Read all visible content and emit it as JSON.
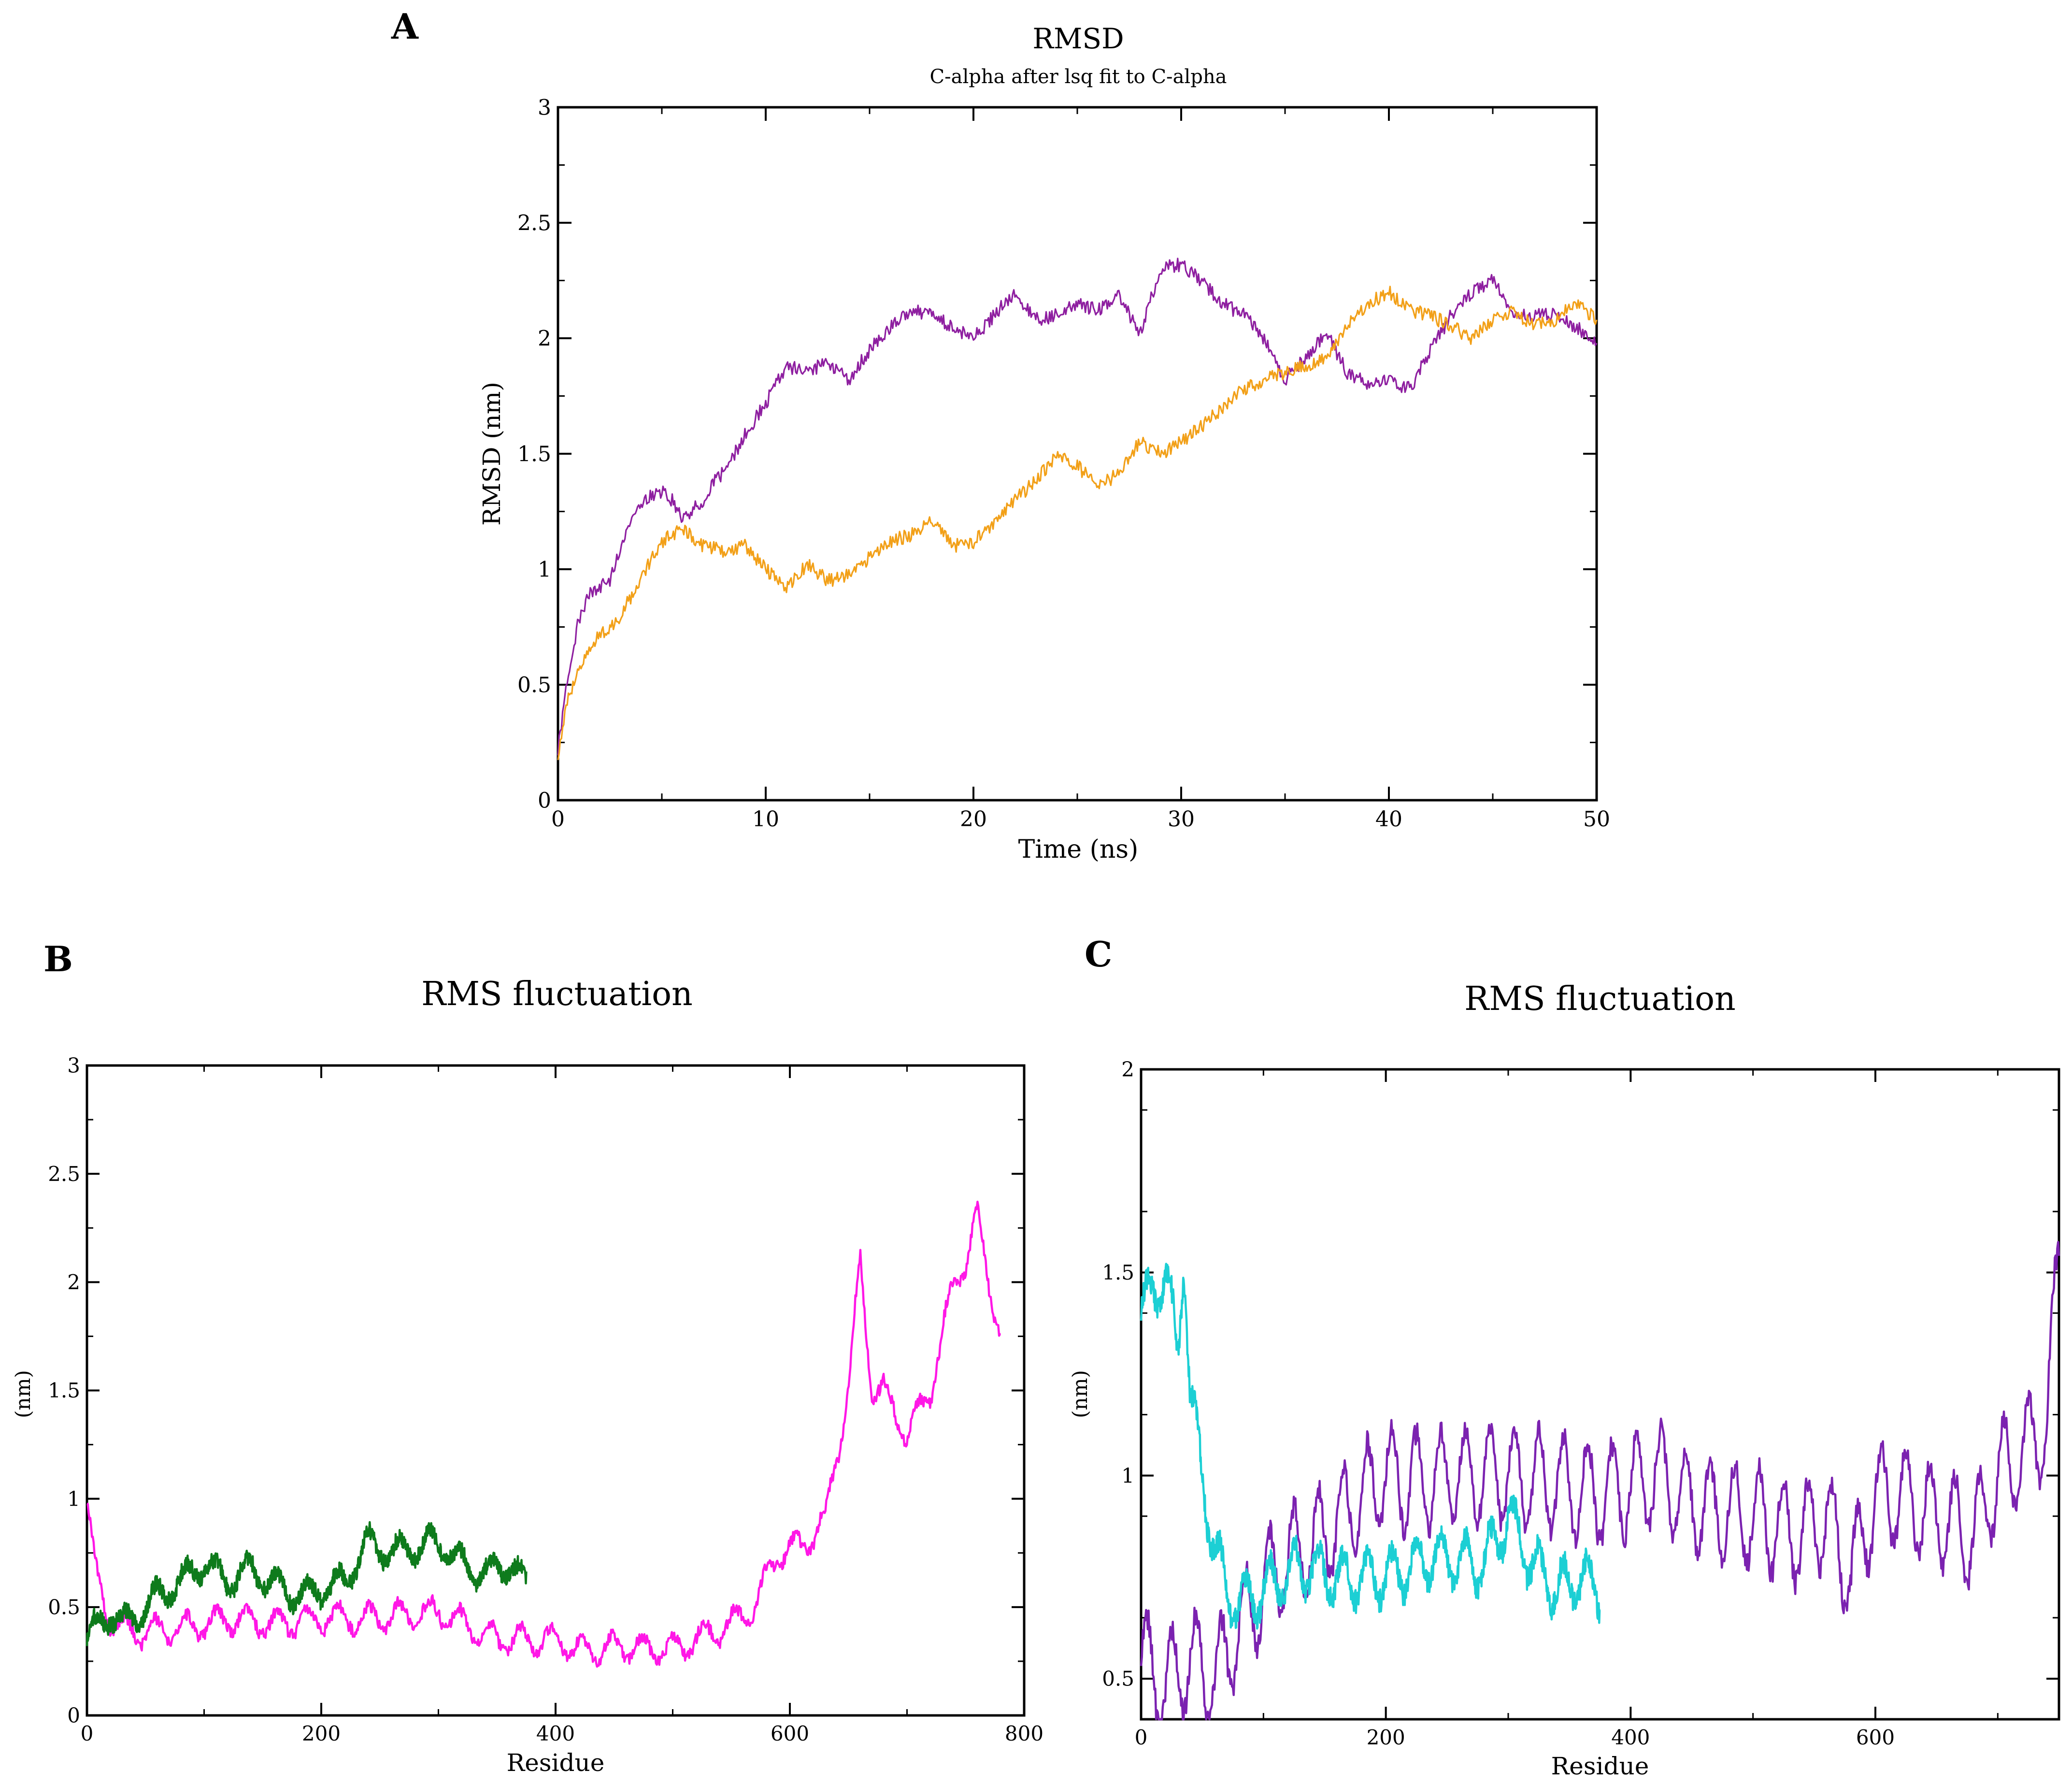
{
  "colors": {
    "purple": "#8e1fa0",
    "orange": "#f2a018",
    "magenta": "#ff17e6",
    "green": "#0e7b1c",
    "violet": "#7b22b0",
    "cyan": "#1ccfd4"
  },
  "chart_data": [
    {
      "type": "line",
      "panel_label": "A",
      "title": "RMSD",
      "subtitle": "C-alpha after lsq fit to C-alpha",
      "xlabel": "Time (ns)",
      "ylabel": "RMSD (nm)",
      "xlim": [
        0,
        50
      ],
      "ylim": [
        0,
        3
      ],
      "x_ticks": [
        0,
        10,
        20,
        30,
        40,
        50
      ],
      "y_ticks": [
        0,
        0.5,
        1,
        1.5,
        2,
        2.5,
        3
      ],
      "x_tick_labels": [
        "0",
        "10",
        "20",
        "30",
        "40",
        "50"
      ],
      "y_tick_labels": [
        "0",
        "0.5",
        "1",
        "1.5",
        "2",
        "2.5",
        "3"
      ],
      "x_minor": 5,
      "y_minor": 0.25,
      "series": [
        {
          "name": "RMSD purple",
          "color": "#8e1fa0",
          "x": [
            0,
            0.5,
            1,
            1.5,
            2,
            2.5,
            3,
            3.5,
            4,
            4.5,
            5,
            5.5,
            6,
            6.5,
            7,
            7.5,
            8,
            8.5,
            9,
            9.5,
            10,
            11,
            12,
            13,
            14,
            15,
            16,
            17,
            18,
            19,
            20,
            21,
            22,
            23,
            24,
            25,
            26,
            27,
            28,
            29,
            30,
            31,
            32,
            33,
            34,
            35,
            36,
            37,
            38,
            39,
            40,
            41,
            42,
            43,
            44,
            45,
            46,
            47,
            48,
            49,
            50
          ],
          "y": [
            0.22,
            0.55,
            0.78,
            0.9,
            0.92,
            0.95,
            1.1,
            1.22,
            1.28,
            1.32,
            1.34,
            1.3,
            1.22,
            1.26,
            1.3,
            1.38,
            1.42,
            1.5,
            1.58,
            1.65,
            1.72,
            1.88,
            1.85,
            1.9,
            1.82,
            1.95,
            2.05,
            2.12,
            2.1,
            2.05,
            2.0,
            2.1,
            2.2,
            2.08,
            2.1,
            2.15,
            2.12,
            2.18,
            2.02,
            2.3,
            2.32,
            2.25,
            2.15,
            2.1,
            2.0,
            1.82,
            1.92,
            2.02,
            1.85,
            1.8,
            1.82,
            1.78,
            1.95,
            2.1,
            2.2,
            2.25,
            2.12,
            2.1,
            2.1,
            2.05,
            1.98
          ]
        },
        {
          "name": "RMSD orange",
          "color": "#f2a018",
          "x": [
            0,
            0.5,
            1,
            1.5,
            2,
            2.5,
            3,
            3.5,
            4,
            4.5,
            5,
            5.5,
            6,
            7,
            8,
            9,
            10,
            11,
            12,
            13,
            14,
            15,
            16,
            17,
            18,
            19,
            20,
            21,
            22,
            23,
            24,
            25,
            26,
            27,
            28,
            29,
            30,
            31,
            32,
            33,
            34,
            35,
            36,
            37,
            38,
            39,
            40,
            41,
            42,
            43,
            44,
            45,
            46,
            47,
            48,
            49,
            50
          ],
          "y": [
            0.2,
            0.45,
            0.55,
            0.65,
            0.72,
            0.75,
            0.8,
            0.88,
            0.95,
            1.05,
            1.12,
            1.15,
            1.18,
            1.1,
            1.08,
            1.1,
            1.0,
            0.92,
            1.02,
            0.95,
            0.98,
            1.05,
            1.12,
            1.15,
            1.22,
            1.1,
            1.12,
            1.2,
            1.3,
            1.38,
            1.5,
            1.45,
            1.35,
            1.42,
            1.55,
            1.5,
            1.55,
            1.62,
            1.7,
            1.78,
            1.82,
            1.85,
            1.88,
            1.92,
            2.05,
            2.15,
            2.2,
            2.12,
            2.1,
            2.05,
            2.0,
            2.08,
            2.12,
            2.05,
            2.08,
            2.15,
            2.08
          ]
        }
      ]
    },
    {
      "type": "line",
      "panel_label": "B",
      "title": "RMS fluctuation",
      "xlabel": "Residue",
      "ylabel": "(nm)",
      "xlim": [
        0,
        800
      ],
      "ylim": [
        0,
        3
      ],
      "x_ticks": [
        0,
        200,
        400,
        600,
        800
      ],
      "y_ticks": [
        0,
        0.5,
        1,
        1.5,
        2,
        2.5,
        3
      ],
      "x_tick_labels": [
        "0",
        "200",
        "400",
        "600",
        "800"
      ],
      "y_tick_labels": [
        "0",
        "0.5",
        "1",
        "1.5",
        "2",
        "2.5",
        "3"
      ],
      "x_minor": 100,
      "y_minor": 0.25,
      "series": [
        {
          "name": "RMSF magenta",
          "color": "#ff17e6",
          "x": [
            0,
            5,
            10,
            20,
            30,
            50,
            70,
            100,
            130,
            160,
            200,
            250,
            300,
            350,
            400,
            420,
            450,
            500,
            520,
            550,
            570,
            590,
            610,
            630,
            650,
            660,
            670,
            680,
            700,
            720,
            740,
            750,
            760,
            770,
            780
          ],
          "y": [
            1.0,
            0.75,
            0.6,
            0.45,
            0.4,
            0.38,
            0.4,
            0.42,
            0.45,
            0.42,
            0.45,
            0.45,
            0.48,
            0.35,
            0.35,
            0.3,
            0.32,
            0.3,
            0.35,
            0.42,
            0.5,
            0.75,
            0.78,
            0.9,
            1.5,
            2.1,
            1.5,
            1.5,
            1.3,
            1.5,
            2.0,
            2.1,
            2.3,
            2.0,
            1.75
          ]
        },
        {
          "name": "RMSF green",
          "color": "#0e7b1c",
          "x": [
            0,
            10,
            20,
            30,
            40,
            60,
            80,
            100,
            120,
            140,
            160,
            180,
            200,
            220,
            240,
            260,
            280,
            300,
            320,
            340,
            360,
            375
          ],
          "y": [
            0.35,
            0.42,
            0.48,
            0.42,
            0.45,
            0.55,
            0.62,
            0.7,
            0.62,
            0.68,
            0.6,
            0.55,
            0.58,
            0.62,
            0.8,
            0.75,
            0.78,
            0.8,
            0.7,
            0.65,
            0.7,
            0.6
          ]
        }
      ]
    },
    {
      "type": "line",
      "panel_label": "C",
      "title": "RMS fluctuation",
      "xlabel": "Residue",
      "ylabel": "(nm)",
      "xlim": [
        0,
        750
      ],
      "ylim": [
        0.4,
        2
      ],
      "x_ticks": [
        0,
        200,
        400,
        600
      ],
      "y_ticks": [
        0.5,
        1,
        1.5,
        2
      ],
      "x_tick_labels": [
        "0",
        "200",
        "400",
        "600"
      ],
      "y_tick_labels": [
        "0.5",
        "1",
        "1.5",
        "2"
      ],
      "x_minor": 100,
      "y_minor": 0.25,
      "series": [
        {
          "name": "RMSF violet",
          "color": "#7b22b0",
          "x": [
            0,
            20,
            40,
            60,
            80,
            100,
            120,
            150,
            180,
            200,
            230,
            260,
            300,
            340,
            380,
            420,
            460,
            500,
            540,
            560,
            580,
            600,
            620,
            650,
            680,
            700,
            720,
            740,
            750
          ],
          "y": [
            0.55,
            0.48,
            0.55,
            0.5,
            0.62,
            0.72,
            0.8,
            0.85,
            0.95,
            1.0,
            0.98,
            1.0,
            1.0,
            0.98,
            0.95,
            1.0,
            0.92,
            0.9,
            0.85,
            0.9,
            0.75,
            0.95,
            0.95,
            0.9,
            0.85,
            1.0,
            1.05,
            1.12,
            1.55
          ]
        },
        {
          "name": "RMSF cyan",
          "color": "#1ccfd4",
          "x": [
            0,
            10,
            20,
            30,
            35,
            40,
            50,
            60,
            70,
            80,
            100,
            130,
            160,
            200,
            240,
            280,
            300,
            320,
            340,
            360,
            375
          ],
          "y": [
            1.4,
            1.45,
            1.5,
            1.3,
            1.55,
            1.2,
            1.0,
            0.82,
            0.72,
            0.68,
            0.72,
            0.78,
            0.75,
            0.75,
            0.8,
            0.78,
            0.9,
            0.78,
            0.72,
            0.75,
            0.72
          ]
        }
      ]
    }
  ]
}
